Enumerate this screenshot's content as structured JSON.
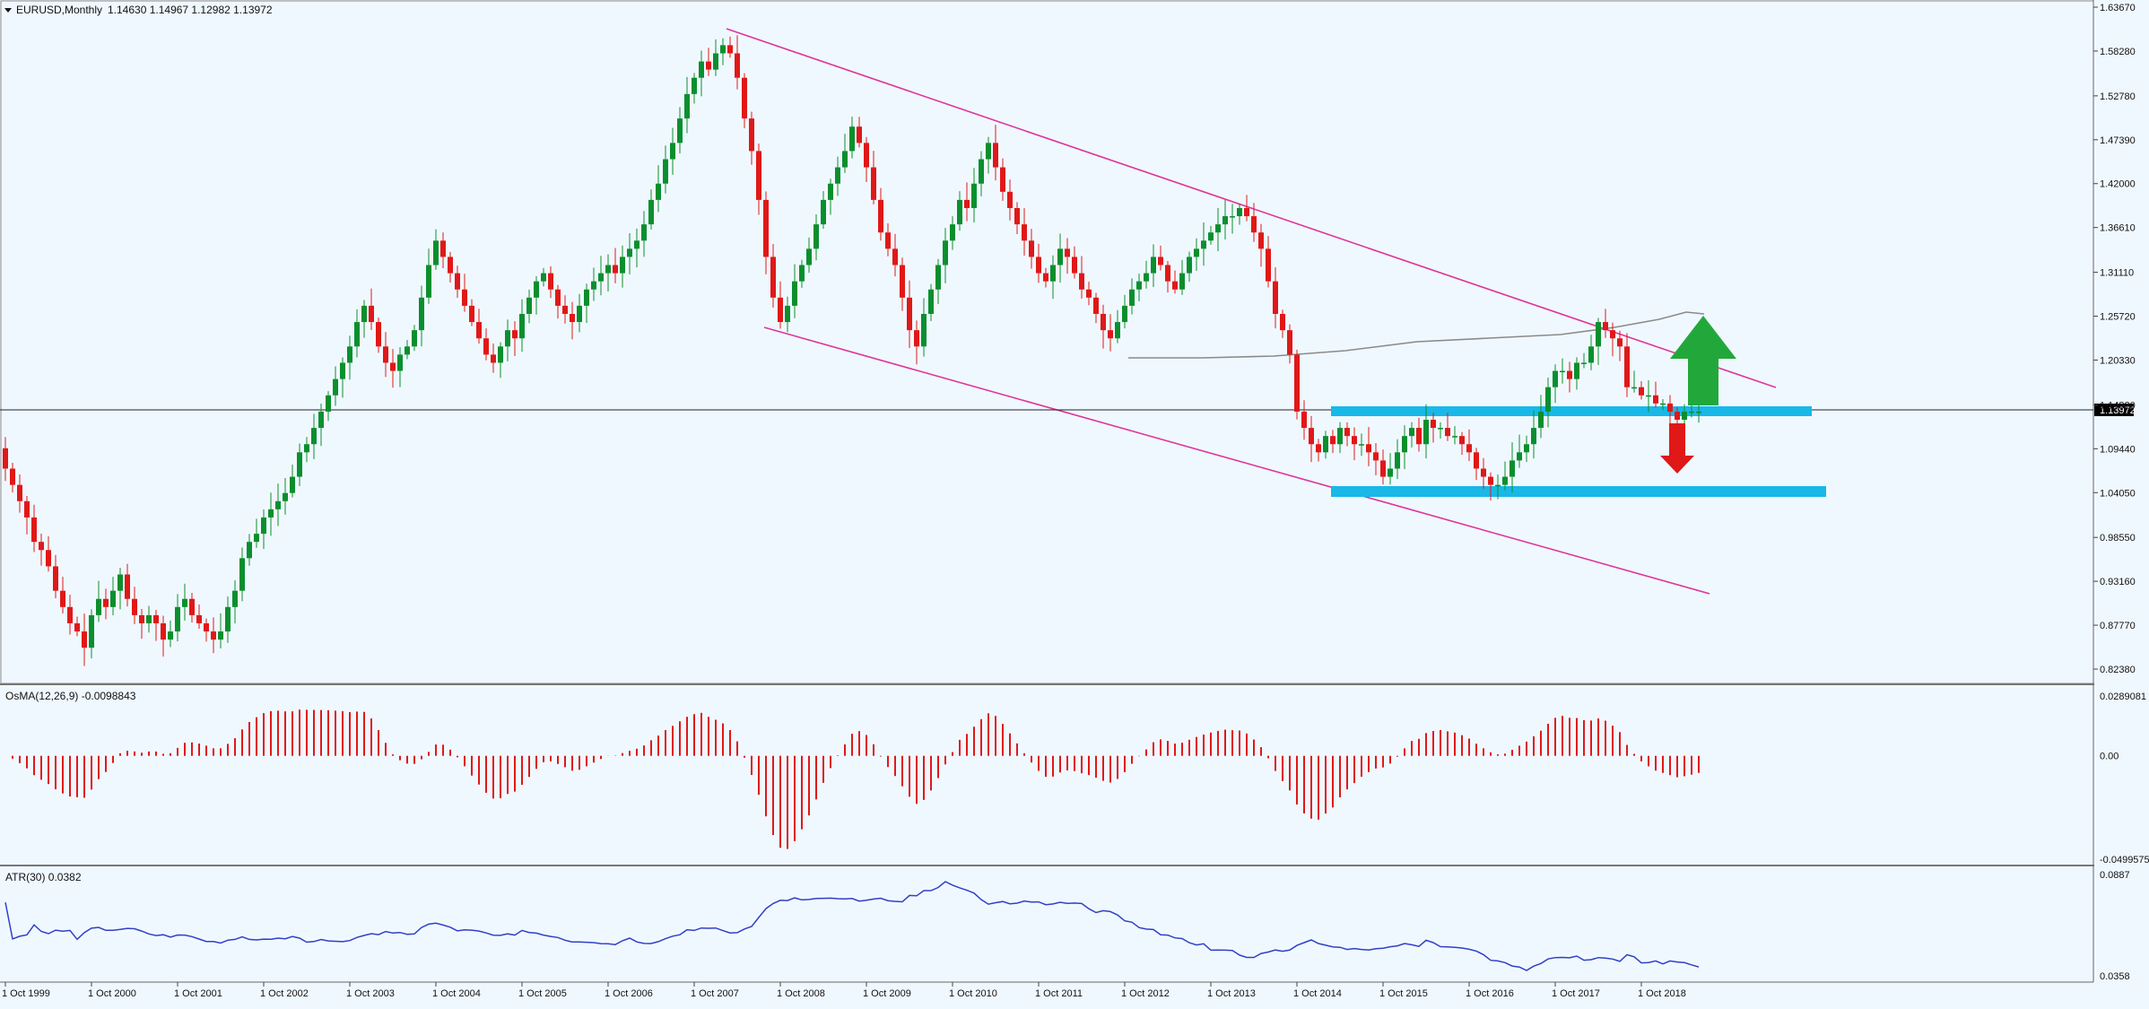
{
  "main_header": {
    "symbol": "EURUSD,Monthly",
    "ohlc": "1.14630 1.14967 1.12982 1.13972"
  },
  "osma_header": "OsMA(12,26,9) -0.0098843",
  "atr_header": "ATR(30) 0.0382",
  "price_label": "1.13972",
  "colors": {
    "background": "#f0f8ff",
    "bull": "#0a8f2e",
    "bear": "#e01818",
    "channel": "#e0359a",
    "zone": "#18b8e8",
    "atr": "#3040c8",
    "ma": "#8a8a8a",
    "arrow_up": "#22a83a",
    "arrow_down": "#e01818"
  },
  "chart_data": [
    {
      "type": "candlestick",
      "title": "EURUSD,Monthly",
      "ylim": [
        0.8,
        1.6367
      ],
      "y_ticks": [
        "1.63670",
        "1.58280",
        "1.52780",
        "1.47390",
        "1.42000",
        "1.36610",
        "1.31110",
        "1.25720",
        "1.20330",
        "1.14820",
        "1.09440",
        "1.04050",
        "0.98550",
        "0.93160",
        "0.87770",
        "0.82380"
      ],
      "x_ticks": [
        "1 Oct 1999",
        "1 Oct 2000",
        "1 Oct 2001",
        "1 Oct 2002",
        "1 Oct 2003",
        "1 Oct 2004",
        "1 Oct 2005",
        "1 Oct 2006",
        "1 Oct 2007",
        "1 Oct 2008",
        "1 Oct 2009",
        "1 Oct 2010",
        "1 Oct 2011",
        "1 Oct 2012",
        "1 Oct 2013",
        "1 Oct 2014",
        "1 Oct 2015",
        "1 Oct 2016",
        "1 Oct 2017",
        "1 Oct 2018"
      ],
      "current_price": 1.13972,
      "closes": [
        1.07,
        1.05,
        1.03,
        1.01,
        0.98,
        0.97,
        0.95,
        0.92,
        0.9,
        0.88,
        0.87,
        0.85,
        0.89,
        0.91,
        0.9,
        0.92,
        0.94,
        0.91,
        0.89,
        0.88,
        0.89,
        0.88,
        0.86,
        0.87,
        0.9,
        0.91,
        0.89,
        0.88,
        0.87,
        0.86,
        0.87,
        0.9,
        0.92,
        0.96,
        0.98,
        0.99,
        1.01,
        1.02,
        1.03,
        1.04,
        1.06,
        1.09,
        1.1,
        1.12,
        1.14,
        1.16,
        1.18,
        1.2,
        1.22,
        1.25,
        1.27,
        1.25,
        1.22,
        1.2,
        1.19,
        1.21,
        1.22,
        1.24,
        1.28,
        1.32,
        1.35,
        1.33,
        1.31,
        1.29,
        1.27,
        1.25,
        1.23,
        1.21,
        1.2,
        1.22,
        1.24,
        1.23,
        1.26,
        1.28,
        1.3,
        1.31,
        1.29,
        1.27,
        1.26,
        1.25,
        1.27,
        1.29,
        1.3,
        1.31,
        1.32,
        1.31,
        1.33,
        1.34,
        1.35,
        1.37,
        1.4,
        1.42,
        1.45,
        1.47,
        1.5,
        1.53,
        1.55,
        1.57,
        1.56,
        1.58,
        1.59,
        1.58,
        1.55,
        1.5,
        1.46,
        1.4,
        1.33,
        1.28,
        1.25,
        1.27,
        1.3,
        1.32,
        1.34,
        1.37,
        1.4,
        1.42,
        1.44,
        1.46,
        1.49,
        1.47,
        1.44,
        1.4,
        1.36,
        1.34,
        1.32,
        1.28,
        1.24,
        1.22,
        1.26,
        1.29,
        1.32,
        1.35,
        1.37,
        1.4,
        1.39,
        1.42,
        1.45,
        1.47,
        1.44,
        1.41,
        1.39,
        1.37,
        1.35,
        1.33,
        1.31,
        1.3,
        1.32,
        1.34,
        1.33,
        1.31,
        1.29,
        1.28,
        1.26,
        1.24,
        1.23,
        1.25,
        1.27,
        1.29,
        1.3,
        1.31,
        1.33,
        1.32,
        1.3,
        1.29,
        1.31,
        1.33,
        1.34,
        1.35,
        1.36,
        1.37,
        1.38,
        1.38,
        1.39,
        1.38,
        1.36,
        1.34,
        1.3,
        1.26,
        1.24,
        1.21,
        1.14,
        1.12,
        1.1,
        1.09,
        1.11,
        1.1,
        1.12,
        1.11,
        1.1,
        1.1,
        1.09,
        1.08,
        1.06,
        1.07,
        1.09,
        1.11,
        1.12,
        1.1,
        1.13,
        1.12,
        1.12,
        1.11,
        1.11,
        1.1,
        1.09,
        1.07,
        1.06,
        1.05,
        1.05,
        1.06,
        1.08,
        1.09,
        1.1,
        1.12,
        1.14,
        1.17,
        1.19,
        1.19,
        1.18,
        1.2,
        1.2,
        1.22,
        1.25,
        1.24,
        1.23,
        1.22,
        1.17,
        1.17,
        1.16,
        1.16,
        1.15,
        1.15,
        1.14,
        1.13,
        1.14,
        1.14,
        1.14
      ]
    },
    {
      "type": "bar",
      "title": "OsMA(12,26,9) -0.0098843",
      "ylim": [
        -0.0499575,
        0.0289081
      ],
      "y_ticks": [
        "0.0289081",
        "0.00",
        "-0.0499575"
      ]
    },
    {
      "type": "line",
      "title": "ATR(30) 0.0382",
      "ylim": [
        0.0358,
        0.0887
      ],
      "y_ticks": [
        "0.0887",
        "0.0358"
      ]
    }
  ]
}
